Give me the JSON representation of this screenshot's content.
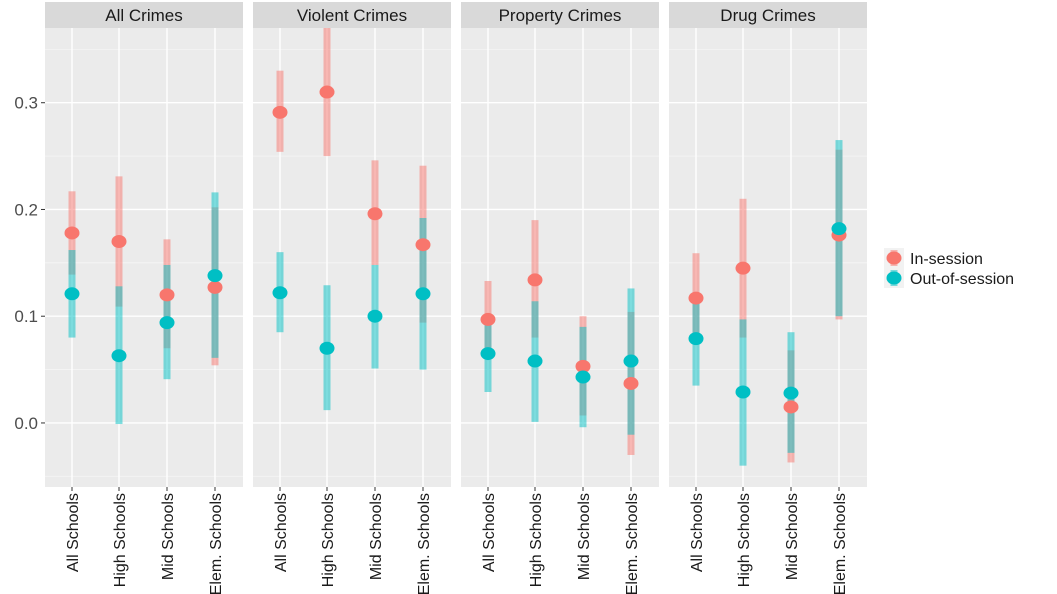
{
  "chart_data": {
    "type": "pointrange",
    "facets": [
      "All Crimes",
      "Violent Crimes",
      "Property Crimes",
      "Drug Crimes"
    ],
    "categories": [
      "All Schools",
      "High Schools",
      "Mid Schools",
      "Elem. Schools"
    ],
    "y_ticks": [
      "0.0",
      "0.1",
      "0.2",
      "0.3"
    ],
    "ylim": [
      -0.06,
      0.37
    ],
    "grid": true,
    "legend_position": "right",
    "series": [
      {
        "name": "In-session",
        "color": "#F8766D",
        "data": [
          [
            [
              0.178,
              0.139,
              0.217
            ],
            [
              0.17,
              0.109,
              0.231
            ],
            [
              0.12,
              0.07,
              0.172
            ],
            [
              0.127,
              0.054,
              0.202
            ]
          ],
          [
            [
              0.291,
              0.254,
              0.33
            ],
            [
              0.31,
              0.25,
              0.37
            ],
            [
              0.196,
              0.148,
              0.246
            ],
            [
              0.167,
              0.094,
              0.241
            ]
          ],
          [
            [
              0.097,
              0.063,
              0.133
            ],
            [
              0.134,
              0.08,
              0.19
            ],
            [
              0.053,
              0.007,
              0.1
            ],
            [
              0.037,
              -0.03,
              0.104
            ]
          ],
          [
            [
              0.117,
              0.076,
              0.159
            ],
            [
              0.145,
              0.08,
              0.21
            ],
            [
              0.015,
              -0.037,
              0.068
            ],
            [
              0.176,
              0.097,
              0.256
            ]
          ]
        ]
      },
      {
        "name": "Out-of-session",
        "color": "#00BFC4",
        "data": [
          [
            [
              0.121,
              0.08,
              0.162
            ],
            [
              0.063,
              -0.001,
              0.128
            ],
            [
              0.094,
              0.041,
              0.148
            ],
            [
              0.138,
              0.061,
              0.216
            ]
          ],
          [
            [
              0.122,
              0.085,
              0.16
            ],
            [
              0.07,
              0.012,
              0.129
            ],
            [
              0.1,
              0.051,
              0.148
            ],
            [
              0.121,
              0.05,
              0.192
            ]
          ],
          [
            [
              0.065,
              0.029,
              0.1
            ],
            [
              0.058,
              0.001,
              0.114
            ],
            [
              0.043,
              -0.004,
              0.09
            ],
            [
              0.058,
              -0.011,
              0.126
            ]
          ],
          [
            [
              0.079,
              0.035,
              0.12
            ],
            [
              0.029,
              -0.04,
              0.097
            ],
            [
              0.028,
              -0.028,
              0.085
            ],
            [
              0.182,
              0.1,
              0.265
            ]
          ]
        ]
      }
    ]
  }
}
